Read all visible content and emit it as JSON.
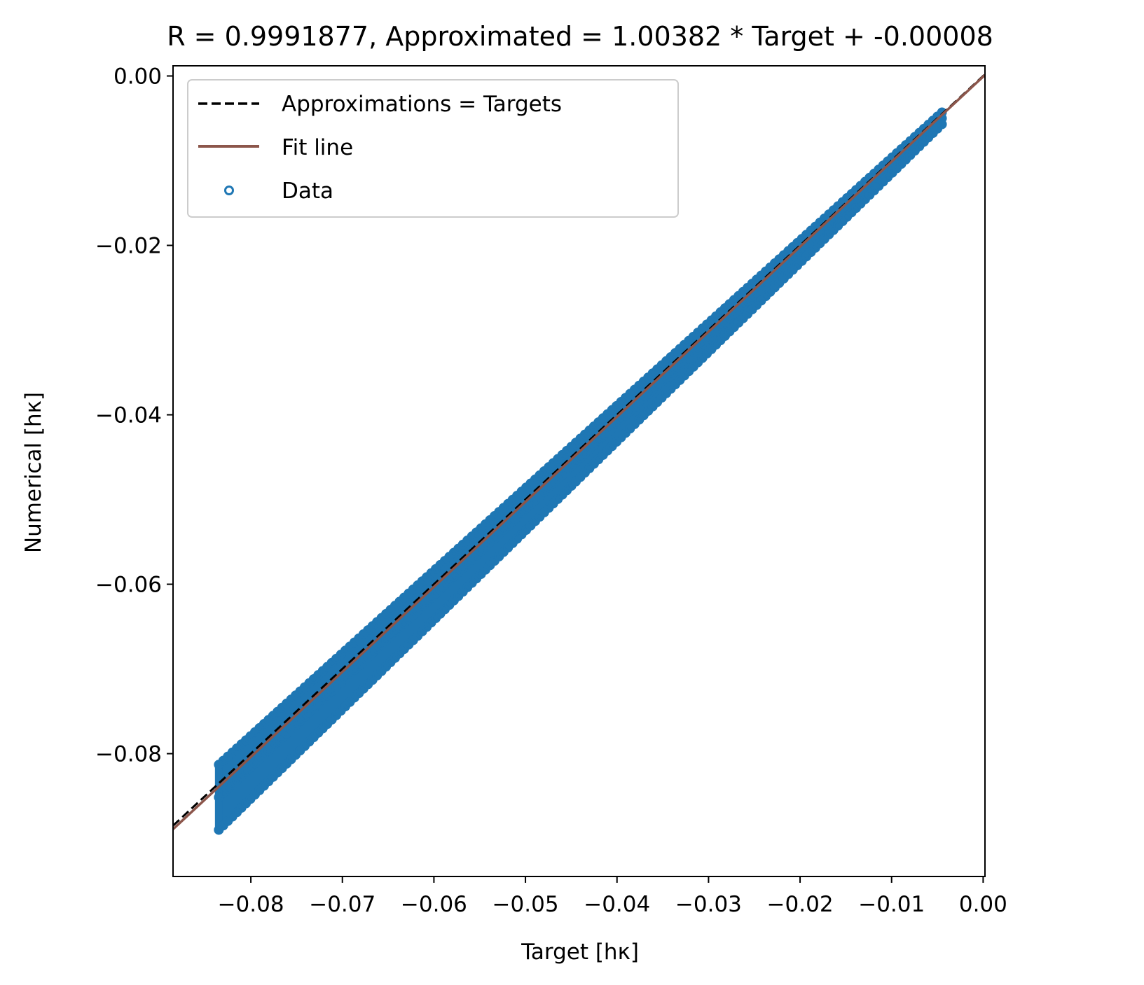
{
  "chart_data": {
    "type": "scatter",
    "title": "R = 0.9991877, Approximated = 1.00382 * Target + -0.00008",
    "xlabel": "Target [hκ]",
    "ylabel": "Numerical [hκ]",
    "xlim": [
      -0.0885,
      0.0002
    ],
    "ylim": [
      -0.0945,
      0.0012
    ],
    "x_ticks": [
      -0.08,
      -0.07,
      -0.06,
      -0.05,
      -0.04,
      -0.03,
      -0.02,
      -0.01,
      0.0
    ],
    "x_tick_labels": [
      "−0.08",
      "−0.07",
      "−0.06",
      "−0.05",
      "−0.04",
      "−0.03",
      "−0.02",
      "−0.01",
      "0.00"
    ],
    "y_ticks": [
      0.0,
      -0.02,
      -0.04,
      -0.06,
      -0.08
    ],
    "y_tick_labels": [
      "0.00",
      "−0.02",
      "−0.04",
      "−0.06",
      "−0.08"
    ],
    "grid": false,
    "legend_position": "upper-left",
    "colors": {
      "identity": "#000000",
      "fit": "#8c564b",
      "data": "#1f77b4"
    },
    "series": [
      {
        "name": "Approximations = Targets",
        "kind": "line",
        "style": "dashed",
        "slope": 1.0,
        "intercept": 0.0
      },
      {
        "name": "Fit line",
        "kind": "line",
        "style": "solid",
        "slope": 1.00382,
        "intercept": -8e-05
      },
      {
        "name": "Data",
        "kind": "scatter",
        "x_range": [
          -0.0835,
          -0.0045
        ],
        "band_upper": [
          [
            -0.0835,
            -0.0813
          ],
          [
            -0.0045,
            -0.0043
          ]
        ],
        "band_lower": [
          [
            -0.0835,
            -0.089
          ],
          [
            -0.0045,
            -0.0057
          ]
        ]
      }
    ]
  }
}
